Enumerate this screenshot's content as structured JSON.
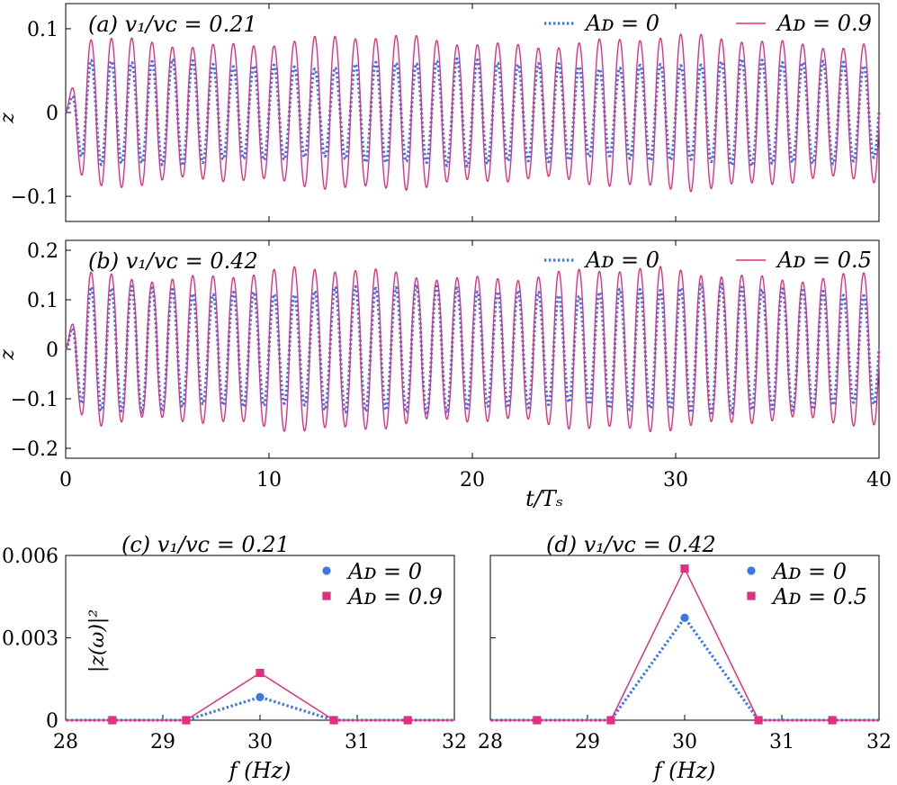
{
  "colors": {
    "series_a": "#3a78e6",
    "series_b": "#e2307f",
    "axis": "#000000"
  },
  "chart_data": [
    {
      "id": "a",
      "type": "line",
      "label": "(a) v₁/vᴄ = 0.21",
      "xlabel": "",
      "ylabel": "z",
      "xlim": [
        0,
        40
      ],
      "ylim": [
        -0.13,
        0.13
      ],
      "yticks": [
        -0.1,
        0,
        0.1
      ],
      "ytick_labels": [
        "−0.1",
        "0",
        "0.1"
      ],
      "xticks": [
        0,
        10,
        20,
        30,
        40
      ],
      "xtick_labels": [],
      "legend": "top-right",
      "series": [
        {
          "name": "Aᴅ = 0",
          "style": "dotted",
          "frequency_per_Ts": 1,
          "amplitude": 0.058
        },
        {
          "name": "Aᴅ = 0.9",
          "style": "solid",
          "frequency_per_Ts": 1,
          "amplitude": 0.085
        }
      ]
    },
    {
      "id": "b",
      "type": "line",
      "label": "(b) v₁/vᴄ = 0.42",
      "xlabel": "t/Tₛ",
      "ylabel": "z",
      "xlim": [
        0,
        40
      ],
      "ylim": [
        -0.22,
        0.22
      ],
      "yticks": [
        -0.2,
        -0.1,
        0,
        0.1,
        0.2
      ],
      "ytick_labels": [
        "−0.2",
        "−0.1",
        "0",
        "0.1",
        "0.2"
      ],
      "xticks": [
        0,
        10,
        20,
        30,
        40
      ],
      "xtick_labels": [
        "0",
        "10",
        "20",
        "30",
        "40"
      ],
      "legend": "top-right",
      "series": [
        {
          "name": "Aᴅ = 0",
          "style": "dotted",
          "frequency_per_Ts": 1,
          "amplitude": 0.12
        },
        {
          "name": "Aᴅ = 0.5",
          "style": "solid",
          "frequency_per_Ts": 1,
          "amplitude": 0.152
        }
      ]
    },
    {
      "id": "c",
      "type": "line",
      "label": "(c) v₁/vᴄ = 0.21",
      "xlabel": "f (Hz)",
      "ylabel": "|z(ω)|²",
      "xlim": [
        28,
        32
      ],
      "ylim": [
        0,
        0.006
      ],
      "yticks": [
        0,
        0.003,
        0.006
      ],
      "ytick_labels": [
        "0",
        "0.003",
        "0.006"
      ],
      "xticks": [
        28,
        29,
        30,
        31,
        32
      ],
      "xtick_labels": [
        "28",
        "29",
        "30",
        "31",
        "32"
      ],
      "legend": "top-right",
      "x": [
        27.73,
        28.48,
        29.24,
        30.0,
        30.76,
        31.52,
        32.27
      ],
      "series": [
        {
          "name": "Aᴅ = 0",
          "style": "dotted",
          "marker": "circle",
          "values": [
            0,
            0,
            0,
            0.00084,
            0,
            0,
            0
          ]
        },
        {
          "name": "Aᴅ = 0.9",
          "style": "solid",
          "marker": "square",
          "values": [
            0,
            0,
            0,
            0.00172,
            0,
            0,
            0
          ]
        }
      ]
    },
    {
      "id": "d",
      "type": "line",
      "label": "(d) v₁/vᴄ = 0.42",
      "xlabel": "f (Hz)",
      "ylabel": "",
      "xlim": [
        28,
        32
      ],
      "ylim": [
        0,
        0.006
      ],
      "yticks": [
        0,
        0.003,
        0.006
      ],
      "ytick_labels": [],
      "xticks": [
        28,
        29,
        30,
        31,
        32
      ],
      "xtick_labels": [
        "28",
        "29",
        "30",
        "31",
        "32"
      ],
      "legend": "top-right",
      "x": [
        27.73,
        28.48,
        29.24,
        30.0,
        30.76,
        31.52,
        32.27
      ],
      "series": [
        {
          "name": "Aᴅ = 0",
          "style": "dotted",
          "marker": "circle",
          "values": [
            0,
            0,
            0,
            0.00373,
            0,
            0,
            0
          ]
        },
        {
          "name": "Aᴅ = 0.5",
          "style": "solid",
          "marker": "square",
          "values": [
            0,
            0,
            0,
            0.00552,
            0,
            0,
            0
          ]
        }
      ]
    }
  ]
}
